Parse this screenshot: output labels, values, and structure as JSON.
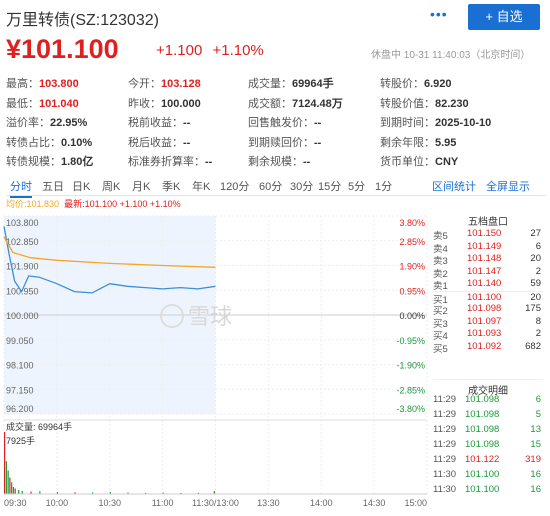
{
  "header": {
    "title": "万里转债(SZ:123032)",
    "more": "•••",
    "add_button": "+ 自选"
  },
  "quote": {
    "price": "¥101.100",
    "change": "+1.100",
    "change_pct": "+1.10%",
    "status": "休盘中 10-31 11:40:03（北京时间）"
  },
  "stats": [
    [
      {
        "label": "最高：",
        "value": "103.800",
        "cls": "red"
      },
      {
        "label": "今开：",
        "value": "103.128",
        "cls": "red"
      },
      {
        "label": "成交量：",
        "value": "69964手",
        "cls": ""
      },
      {
        "label": "转股价：",
        "value": "6.920",
        "cls": ""
      }
    ],
    [
      {
        "label": "最低：",
        "value": "101.040",
        "cls": "red"
      },
      {
        "label": "昨收：",
        "value": "100.000",
        "cls": ""
      },
      {
        "label": "成交额：",
        "value": "7124.48万",
        "cls": ""
      },
      {
        "label": "转股价值：",
        "value": "82.230",
        "cls": ""
      }
    ],
    [
      {
        "label": "溢价率：",
        "value": "22.95%",
        "cls": ""
      },
      {
        "label": "税前收益：",
        "value": "--",
        "cls": ""
      },
      {
        "label": "回售触发价：",
        "value": "--",
        "cls": ""
      },
      {
        "label": "到期时间：",
        "value": "2025-10-10",
        "cls": ""
      }
    ],
    [
      {
        "label": "转债占比：",
        "value": "0.10%",
        "cls": ""
      },
      {
        "label": "税后收益：",
        "value": "--",
        "cls": ""
      },
      {
        "label": "到期赎回价：",
        "value": "--",
        "cls": ""
      },
      {
        "label": "剩余年限：",
        "value": "5.95",
        "cls": ""
      }
    ],
    [
      {
        "label": "转债规模：",
        "value": "1.80亿",
        "cls": ""
      },
      {
        "label": "标准券折算率：",
        "value": "--",
        "cls": ""
      },
      {
        "label": "剩余规模：",
        "value": "--",
        "cls": ""
      },
      {
        "label": "货币单位：",
        "value": "CNY",
        "cls": ""
      }
    ]
  ],
  "tabs": [
    "分时",
    "五日",
    "日K",
    "周K",
    "月K",
    "季K",
    "年K",
    "120分",
    "60分",
    "30分",
    "15分",
    "5分",
    "1分"
  ],
  "tab_links": [
    "区间统计",
    "全屏显示"
  ],
  "legend": {
    "avg": "均价:101.830",
    "latest": "最新:101.100 +1.100 +1.10%"
  },
  "watermark": "雪球",
  "orderbook": {
    "title": "五档盘口",
    "rows": [
      {
        "side": "卖5",
        "price": "101.150",
        "vol": "27",
        "cls": "red"
      },
      {
        "side": "卖4",
        "price": "101.149",
        "vol": "6",
        "cls": "red"
      },
      {
        "side": "卖3",
        "price": "101.148",
        "vol": "20",
        "cls": "red"
      },
      {
        "side": "卖2",
        "price": "101.147",
        "vol": "2",
        "cls": "red"
      },
      {
        "side": "卖1",
        "price": "101.140",
        "vol": "59",
        "cls": "red"
      },
      {
        "side": "买1",
        "price": "101.100",
        "vol": "20",
        "cls": "red"
      },
      {
        "side": "买2",
        "price": "101.098",
        "vol": "175",
        "cls": "red"
      },
      {
        "side": "买3",
        "price": "101.097",
        "vol": "8",
        "cls": "red"
      },
      {
        "side": "买4",
        "price": "101.093",
        "vol": "2",
        "cls": "red"
      },
      {
        "side": "买5",
        "price": "101.092",
        "vol": "682",
        "cls": "red"
      }
    ]
  },
  "trades": {
    "title": "成交明细",
    "rows": [
      {
        "time": "11:29",
        "price": "101.098",
        "vol": "6",
        "cls": "green"
      },
      {
        "time": "11:29",
        "price": "101.098",
        "vol": "5",
        "cls": "green"
      },
      {
        "time": "11:29",
        "price": "101.098",
        "vol": "13",
        "cls": "green"
      },
      {
        "time": "11:29",
        "price": "101.098",
        "vol": "15",
        "cls": "green"
      },
      {
        "time": "11:29",
        "price": "101.122",
        "vol": "319",
        "cls": "red"
      },
      {
        "time": "11:30",
        "price": "101.100",
        "vol": "16",
        "cls": "green"
      },
      {
        "time": "11:30",
        "price": "101.100",
        "vol": "16",
        "cls": "green"
      }
    ]
  },
  "chart_data": {
    "type": "line",
    "y_labels_left": [
      "103.800",
      "102.850",
      "101.900",
      "100.950",
      "100.000",
      "99.050",
      "98.100",
      "97.150",
      "96.200"
    ],
    "y_labels_right": [
      "3.80%",
      "2.85%",
      "1.90%",
      "0.95%",
      "0.00%",
      "-0.95%",
      "-1.90%",
      "-2.85%",
      "-3.80%"
    ],
    "ylim": [
      96.2,
      103.8
    ],
    "x_ticks": [
      "09:30",
      "10:00",
      "10:30",
      "11:00",
      "11:30/13:00",
      "13:30",
      "14:00",
      "14:30",
      "15:00"
    ],
    "series": [
      {
        "name": "最新",
        "color": "#3a8fd8",
        "values": [
          {
            "t": "09:30",
            "v": 103.4
          },
          {
            "t": "09:33",
            "v": 102.3
          },
          {
            "t": "09:36",
            "v": 101.3
          },
          {
            "t": "09:40",
            "v": 100.9
          },
          {
            "t": "09:44",
            "v": 101.5
          },
          {
            "t": "09:50",
            "v": 101.45
          },
          {
            "t": "10:00",
            "v": 101.2
          },
          {
            "t": "10:10",
            "v": 100.9
          },
          {
            "t": "10:20",
            "v": 100.85
          },
          {
            "t": "10:30",
            "v": 101.2
          },
          {
            "t": "10:40",
            "v": 101.1
          },
          {
            "t": "10:50",
            "v": 101.05
          },
          {
            "t": "11:00",
            "v": 101.0
          },
          {
            "t": "11:10",
            "v": 101.05
          },
          {
            "t": "11:20",
            "v": 101.0
          },
          {
            "t": "11:30",
            "v": 101.1
          }
        ]
      },
      {
        "name": "均价",
        "color": "#f5a623",
        "values": [
          {
            "t": "09:30",
            "v": 103.0
          },
          {
            "t": "09:35",
            "v": 102.4
          },
          {
            "t": "09:45",
            "v": 102.2
          },
          {
            "t": "10:00",
            "v": 102.1
          },
          {
            "t": "10:30",
            "v": 101.98
          },
          {
            "t": "11:00",
            "v": 101.9
          },
          {
            "t": "11:30",
            "v": 101.83
          }
        ]
      }
    ],
    "volume_label": "成交量: 69964手",
    "volume_max_label": "7925手",
    "volumes": [
      {
        "t": "09:30",
        "v": 7925
      },
      {
        "t": "09:31",
        "v": 4200
      },
      {
        "t": "09:32",
        "v": 3000
      },
      {
        "t": "09:33",
        "v": 2100
      },
      {
        "t": "09:34",
        "v": 1500
      },
      {
        "t": "09:35",
        "v": 900
      },
      {
        "t": "09:36",
        "v": 700
      },
      {
        "t": "09:38",
        "v": 500
      },
      {
        "t": "09:40",
        "v": 400
      },
      {
        "t": "09:45",
        "v": 300
      },
      {
        "t": "09:50",
        "v": 350
      },
      {
        "t": "10:00",
        "v": 250
      },
      {
        "t": "10:10",
        "v": 220
      },
      {
        "t": "10:20",
        "v": 200
      },
      {
        "t": "10:30",
        "v": 260
      },
      {
        "t": "10:40",
        "v": 180
      },
      {
        "t": "10:50",
        "v": 150
      },
      {
        "t": "11:00",
        "v": 170
      },
      {
        "t": "11:10",
        "v": 140
      },
      {
        "t": "11:20",
        "v": 160
      },
      {
        "t": "11:29",
        "v": 380
      }
    ]
  }
}
